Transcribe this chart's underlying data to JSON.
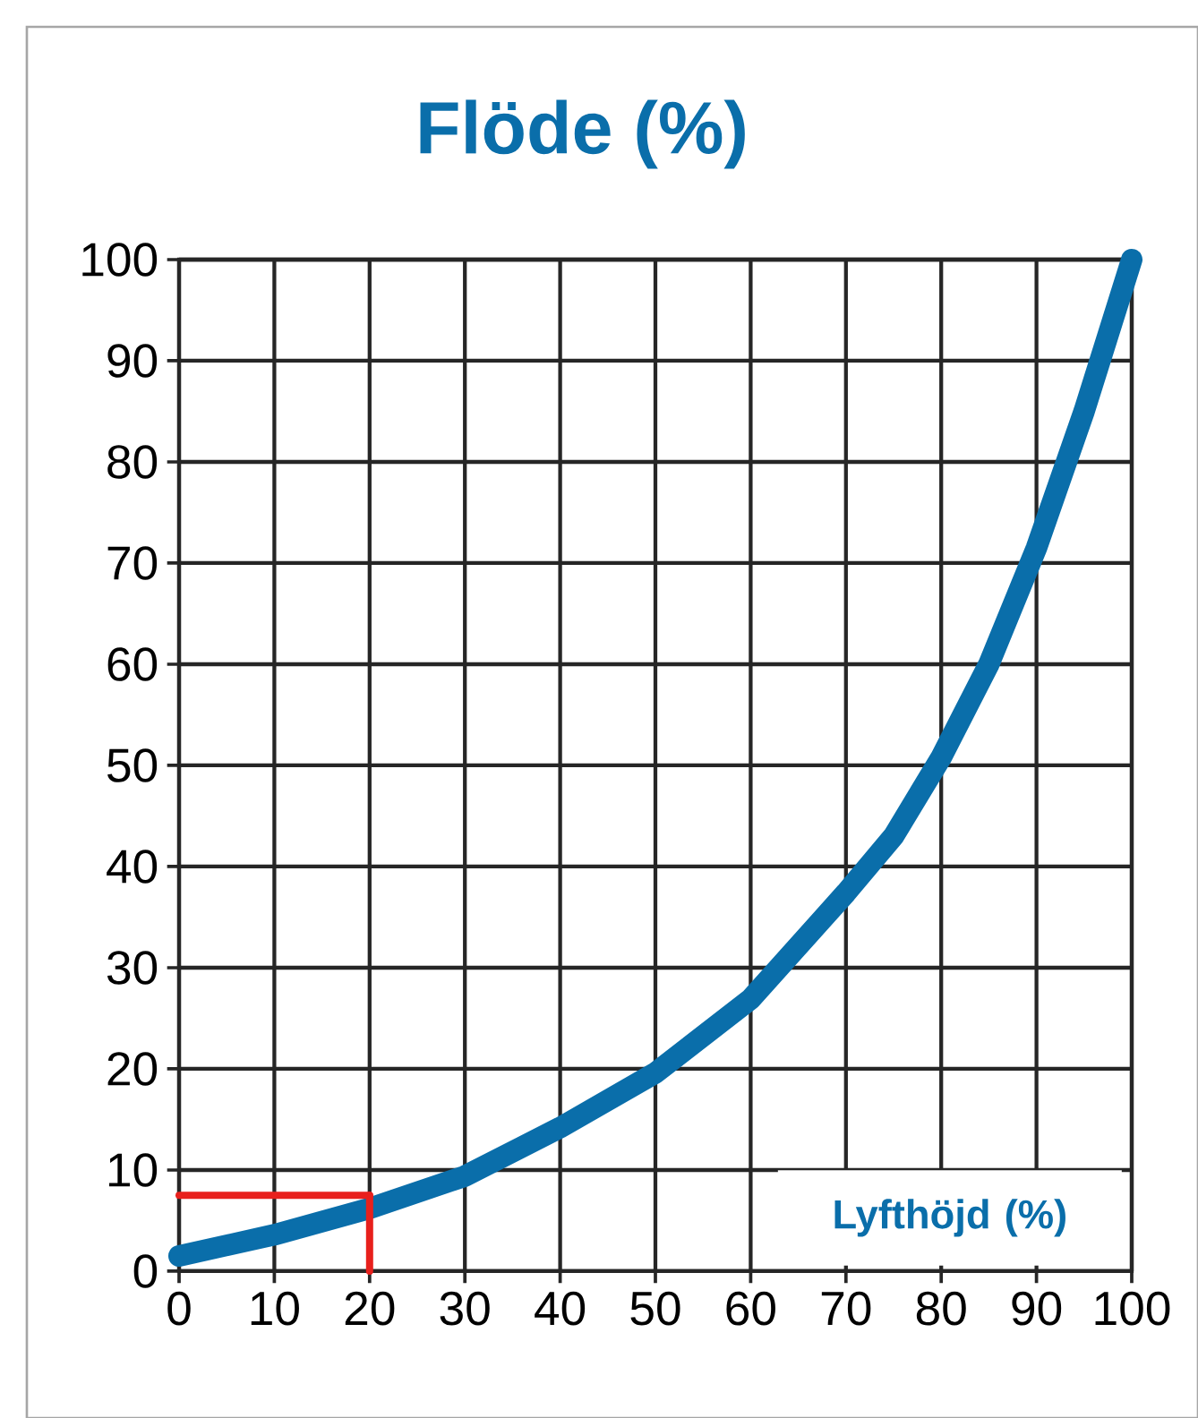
{
  "chart_data": {
    "type": "line",
    "title": "Flöde (%)",
    "xlabel": "Lyfthöjd (%)",
    "xlim": [
      0,
      100
    ],
    "ylim": [
      0,
      100
    ],
    "xticks": [
      0,
      10,
      20,
      30,
      40,
      50,
      60,
      70,
      80,
      90,
      100
    ],
    "yticks": [
      0,
      10,
      20,
      30,
      40,
      50,
      60,
      70,
      80,
      90,
      100
    ],
    "grid": true,
    "series": [
      {
        "color": "#0a6eaa",
        "x": [
          0,
          10,
          20,
          30,
          40,
          50,
          60,
          70,
          75,
          80,
          85,
          90,
          95,
          100
        ],
        "values": [
          1.5,
          3.6,
          6.2,
          9.4,
          14.2,
          19.6,
          26.9,
          37.4,
          43,
          50.8,
          60,
          71.5,
          85,
          100
        ]
      },
      {
        "color": "#e8201c",
        "x": [
          20,
          20
        ],
        "values": [
          0,
          7.5
        ]
      },
      {
        "color": "#e8201c",
        "x": [
          20,
          0
        ],
        "values": [
          7.5,
          7.5
        ]
      }
    ]
  }
}
